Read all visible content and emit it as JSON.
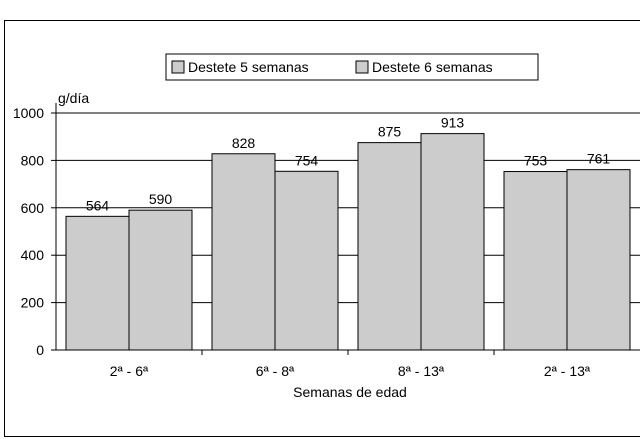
{
  "chart_data": {
    "type": "bar",
    "title": "",
    "ylabel": "g/día",
    "xlabel": "Semanas de edad",
    "ylim": [
      0,
      1000
    ],
    "yticks": [
      0,
      200,
      400,
      600,
      800,
      1000
    ],
    "ytick_labels": [
      "0",
      "200",
      "400",
      "600",
      "800",
      "1000"
    ],
    "categories": [
      "2ª - 6ª",
      "6ª - 8ª",
      "8ª - 13ª",
      "2ª - 13ª"
    ],
    "series": [
      {
        "name": "Destete 5 semanas",
        "values": [
          564,
          828,
          875,
          753
        ],
        "labels": [
          "564",
          "828",
          "875",
          "753"
        ]
      },
      {
        "name": "Destete 6 semanas",
        "values": [
          590,
          754,
          913,
          761
        ],
        "labels": [
          "590",
          "754",
          "913",
          "761"
        ]
      }
    ],
    "grid": true,
    "legend_position": "top-center",
    "bar_color": "#cccccc"
  }
}
